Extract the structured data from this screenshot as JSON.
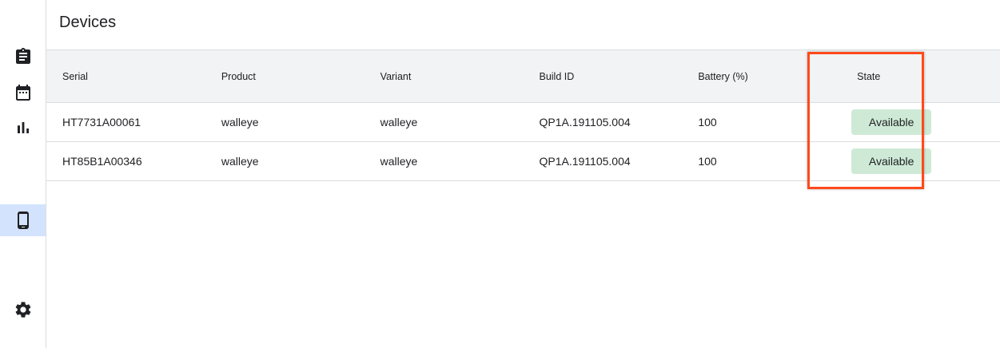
{
  "sidebar": {
    "items": [
      {
        "icon": "clipboard-icon",
        "active": false
      },
      {
        "icon": "calendar-icon",
        "active": false
      },
      {
        "icon": "bar-chart-icon",
        "active": false
      },
      {
        "icon": "phone-icon",
        "active": true
      },
      {
        "icon": "gear-icon",
        "active": false
      }
    ]
  },
  "header": {
    "title": "Devices"
  },
  "table": {
    "columns": [
      "Serial",
      "Product",
      "Variant",
      "Build ID",
      "Battery (%)",
      "State"
    ],
    "rows": [
      [
        "HT7731A00061",
        "walleye",
        "walleye",
        "QP1A.191105.004",
        "100",
        "Available"
      ],
      [
        "HT85B1A00346",
        "walleye",
        "walleye",
        "QP1A.191105.004",
        "100",
        "Available"
      ]
    ]
  },
  "colors": {
    "accent_selected": "#d3e3fd",
    "available_badge": "#ceead6",
    "highlight_box": "#ff4a1c"
  }
}
